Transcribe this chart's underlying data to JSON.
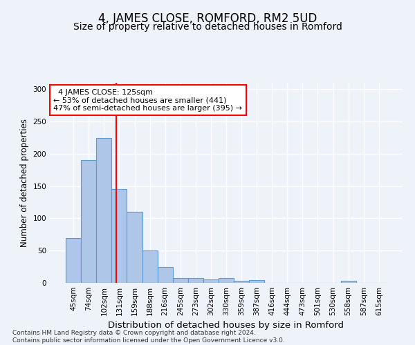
{
  "title": "4, JAMES CLOSE, ROMFORD, RM2 5UD",
  "subtitle": "Size of property relative to detached houses in Romford",
  "xlabel": "Distribution of detached houses by size in Romford",
  "ylabel": "Number of detached properties",
  "categories": [
    "45sqm",
    "74sqm",
    "102sqm",
    "131sqm",
    "159sqm",
    "188sqm",
    "216sqm",
    "245sqm",
    "273sqm",
    "302sqm",
    "330sqm",
    "359sqm",
    "387sqm",
    "416sqm",
    "444sqm",
    "473sqm",
    "501sqm",
    "530sqm",
    "558sqm",
    "587sqm",
    "615sqm"
  ],
  "values": [
    70,
    190,
    225,
    145,
    110,
    50,
    25,
    8,
    8,
    5,
    8,
    3,
    4,
    0,
    0,
    0,
    0,
    0,
    3,
    0,
    0
  ],
  "bar_color": "#aec6e8",
  "bar_edgecolor": "#5b9bd5",
  "bar_linewidth": 0.8,
  "property_line_x": 2.79,
  "annotation_text": "  4 JAMES CLOSE: 125sqm\n← 53% of detached houses are smaller (441)\n47% of semi-detached houses are larger (395) →",
  "annotation_box_color": "white",
  "annotation_box_edgecolor": "red",
  "annotation_fontsize": 8,
  "vline_color": "red",
  "vline_linewidth": 1.5,
  "ylim": [
    0,
    310
  ],
  "yticks": [
    0,
    50,
    100,
    150,
    200,
    250,
    300
  ],
  "title_fontsize": 12,
  "subtitle_fontsize": 10,
  "xlabel_fontsize": 9.5,
  "ylabel_fontsize": 8.5,
  "tick_fontsize": 7.5,
  "footer_text": "Contains HM Land Registry data © Crown copyright and database right 2024.\nContains public sector information licensed under the Open Government Licence v3.0.",
  "footer_fontsize": 6.5,
  "background_color": "#eef2f9",
  "grid_color": "white"
}
